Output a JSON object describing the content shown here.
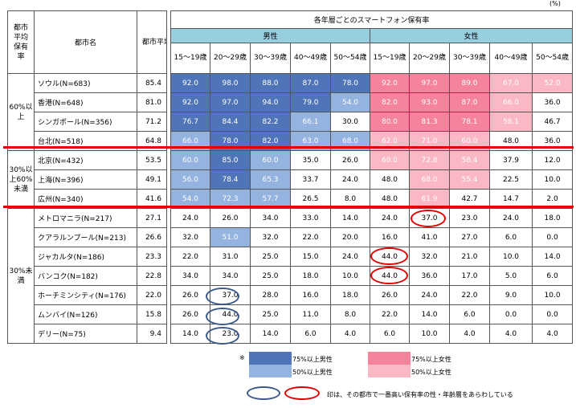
{
  "unit_label": "(%)",
  "headers": {
    "avg_group": "都市平均保有率",
    "city_name": "都市名",
    "city_avg": "都市平均保有率",
    "title": "各年層ごとのスマートフォン保有率",
    "male": "男性",
    "female": "女性",
    "age_groups": [
      "15～19歳",
      "20～29歳",
      "30～39歳",
      "40～49歳",
      "50～54歳"
    ]
  },
  "groups": [
    "60%以上",
    "30%以上60%未満",
    "30%未満"
  ],
  "rows": [
    {
      "city": "ソウル(N=683)",
      "avg": "85.4",
      "vals": [
        "92.0",
        "98.0",
        "88.0",
        "87.0",
        "78.0",
        "92.0",
        "97.0",
        "89.0",
        "67.0",
        "52.0"
      ],
      "cls": [
        "m75",
        "m75",
        "m75",
        "m75",
        "m75",
        "f75",
        "f75",
        "f75",
        "f50",
        "f50"
      ]
    },
    {
      "city": "香港(N=648)",
      "avg": "81.0",
      "vals": [
        "92.0",
        "97.0",
        "94.0",
        "79.0",
        "54.0",
        "82.0",
        "93.0",
        "87.0",
        "66.0",
        "36.0"
      ],
      "cls": [
        "m75",
        "m75",
        "m75",
        "m75",
        "m50",
        "f75",
        "f75",
        "f75",
        "f50",
        ""
      ]
    },
    {
      "city": "シンガポール(N=356)",
      "avg": "71.2",
      "vals": [
        "76.7",
        "84.4",
        "82.2",
        "66.1",
        "30.0",
        "80.0",
        "81.3",
        "78.1",
        "58.1",
        "46.7"
      ],
      "cls": [
        "m75",
        "m75",
        "m75",
        "m50",
        "",
        "f75",
        "f75",
        "f75",
        "f50",
        ""
      ]
    },
    {
      "city": "台北(N=518)",
      "avg": "64.8",
      "vals": [
        "66.0",
        "78.0",
        "82.0",
        "63.0",
        "68.0",
        "62.0",
        "71.0",
        "60.0",
        "48.0",
        "36.0"
      ],
      "cls": [
        "m50",
        "m75",
        "m75",
        "m50",
        "m50",
        "f50",
        "f50",
        "f50",
        "",
        ""
      ]
    },
    {
      "city": "北京(N=432)",
      "avg": "53.5",
      "vals": [
        "60.0",
        "85.0",
        "60.0",
        "35.0",
        "26.0",
        "60.0",
        "72.8",
        "58.4",
        "37.9",
        "12.0"
      ],
      "cls": [
        "m50",
        "m75",
        "m50",
        "",
        "",
        "f50",
        "f50",
        "f50",
        "",
        ""
      ]
    },
    {
      "city": "上海(N=396)",
      "avg": "49.1",
      "vals": [
        "56.0",
        "78.4",
        "65.3",
        "33.7",
        "24.0",
        "48.0",
        "68.0",
        "55.4",
        "22.5",
        "10.0"
      ],
      "cls": [
        "m50",
        "m75",
        "m50",
        "",
        "",
        "",
        "f50",
        "f50",
        "",
        ""
      ]
    },
    {
      "city": "広州(N=340)",
      "avg": "41.6",
      "vals": [
        "54.0",
        "72.3",
        "57.7",
        "26.5",
        "8.0",
        "48.0",
        "61.9",
        "42.7",
        "14.7",
        "2.0"
      ],
      "cls": [
        "m50",
        "m50",
        "m50",
        "",
        "",
        "",
        "f50",
        "",
        "",
        ""
      ]
    },
    {
      "city": "メトロマニラ(N=217)",
      "avg": "27.1",
      "vals": [
        "24.0",
        "26.0",
        "34.0",
        "33.0",
        "14.0",
        "24.0",
        "37.0",
        "23.0",
        "24.0",
        "18.0"
      ],
      "cls": [
        "",
        "",
        "",
        "",
        "",
        "",
        "",
        "",
        "",
        ""
      ]
    },
    {
      "city": "クアラルンプール(N=213)",
      "avg": "26.6",
      "vals": [
        "32.0",
        "51.0",
        "32.0",
        "22.0",
        "20.0",
        "16.0",
        "41.0",
        "27.0",
        "6.0",
        "0.0"
      ],
      "cls": [
        "",
        "m50",
        "",
        "",
        "",
        "",
        "",
        "",
        "",
        ""
      ]
    },
    {
      "city": "ジャカルタ(N=186)",
      "avg": "23.3",
      "vals": [
        "22.0",
        "31.0",
        "25.0",
        "15.0",
        "24.0",
        "44.0",
        "32.0",
        "21.0",
        "10.0",
        "14.0"
      ],
      "cls": [
        "",
        "",
        "",
        "",
        "",
        "",
        "",
        "",
        "",
        ""
      ]
    },
    {
      "city": "バンコク(N=182)",
      "avg": "22.8",
      "vals": [
        "34.0",
        "34.0",
        "25.0",
        "18.0",
        "10.0",
        "44.0",
        "36.0",
        "17.0",
        "5.0",
        "6.0"
      ],
      "cls": [
        "",
        "",
        "",
        "",
        "",
        "",
        "",
        "",
        "",
        ""
      ]
    },
    {
      "city": "ホーチミンシティ(N=176)",
      "avg": "22.0",
      "vals": [
        "26.0",
        "37.0",
        "28.0",
        "16.0",
        "18.0",
        "26.0",
        "24.0",
        "22.0",
        "9.0",
        "10.0"
      ],
      "cls": [
        "",
        "",
        "",
        "",
        "",
        "",
        "",
        "",
        "",
        ""
      ]
    },
    {
      "city": "ムンバイ(N=126)",
      "avg": "15.8",
      "vals": [
        "26.0",
        "44.0",
        "25.0",
        "11.0",
        "8.0",
        "22.0",
        "14.0",
        "6.0",
        "0.0",
        "0.0"
      ],
      "cls": [
        "",
        "",
        "",
        "",
        "",
        "",
        "",
        "",
        "",
        ""
      ]
    },
    {
      "city": "デリー(N=75)",
      "avg": "9.4",
      "vals": [
        "14.0",
        "23.0",
        "14.0",
        "6.0",
        "4.0",
        "6.0",
        "10.0",
        "4.0",
        "4.0",
        "4.0"
      ],
      "cls": [
        "",
        "",
        "",
        "",
        "",
        "",
        "",
        "",
        "",
        ""
      ]
    }
  ],
  "legend": {
    "note_mark": "※",
    "male75": "75%以上男性",
    "male50": "50%以上男性",
    "female75": "75%以上女性",
    "female50": "50%以上女性",
    "circle_note": "印は、その都市で一番高い保有率の性・年齢層をあらわしている"
  },
  "colors": {
    "male75": "#4f74b8",
    "male50": "#95b3df",
    "female75": "#f6839c",
    "female50": "#f9b8c4",
    "sex_header": "#98cfe0",
    "red_rule": "#e00000",
    "blue_circle": "#3c5b8a"
  }
}
